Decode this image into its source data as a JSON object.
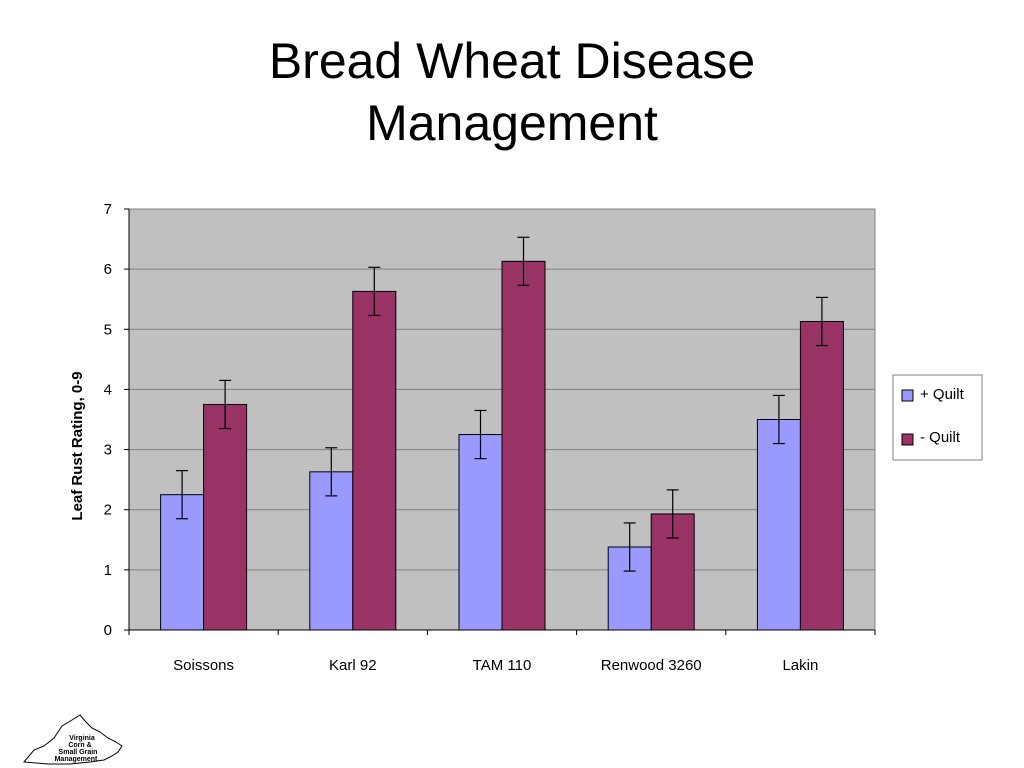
{
  "slide": {
    "title_line1": "Bread Wheat Disease",
    "title_line2": "Management"
  },
  "chart_data": {
    "type": "bar",
    "title": "Bread Wheat Disease Management",
    "ylabel": "Leaf Rust Rating, 0-9",
    "xlabel": "",
    "ylim": [
      0,
      7
    ],
    "yticks": [
      0,
      1,
      2,
      3,
      4,
      5,
      6,
      7
    ],
    "grid": true,
    "legend_position": "right",
    "categories": [
      "Soissons",
      "Karl 92",
      "TAM 110",
      "Renwood 3260",
      "Lakin"
    ],
    "series": [
      {
        "name": "+ Quilt",
        "color": "#9999ff",
        "values": [
          2.25,
          2.63,
          3.25,
          1.38,
          3.5
        ],
        "error": [
          0.4,
          0.4,
          0.4,
          0.4,
          0.4
        ]
      },
      {
        "name": "- Quilt",
        "color": "#993366",
        "values": [
          3.75,
          5.63,
          6.13,
          1.93,
          5.13
        ],
        "error": [
          0.4,
          0.4,
          0.4,
          0.4,
          0.4
        ]
      }
    ],
    "plot_background": "#c0c0c0"
  },
  "logo": {
    "line1": "Virginia",
    "line2": "Corn &",
    "line3": "Small Grain",
    "line4": "Management"
  }
}
